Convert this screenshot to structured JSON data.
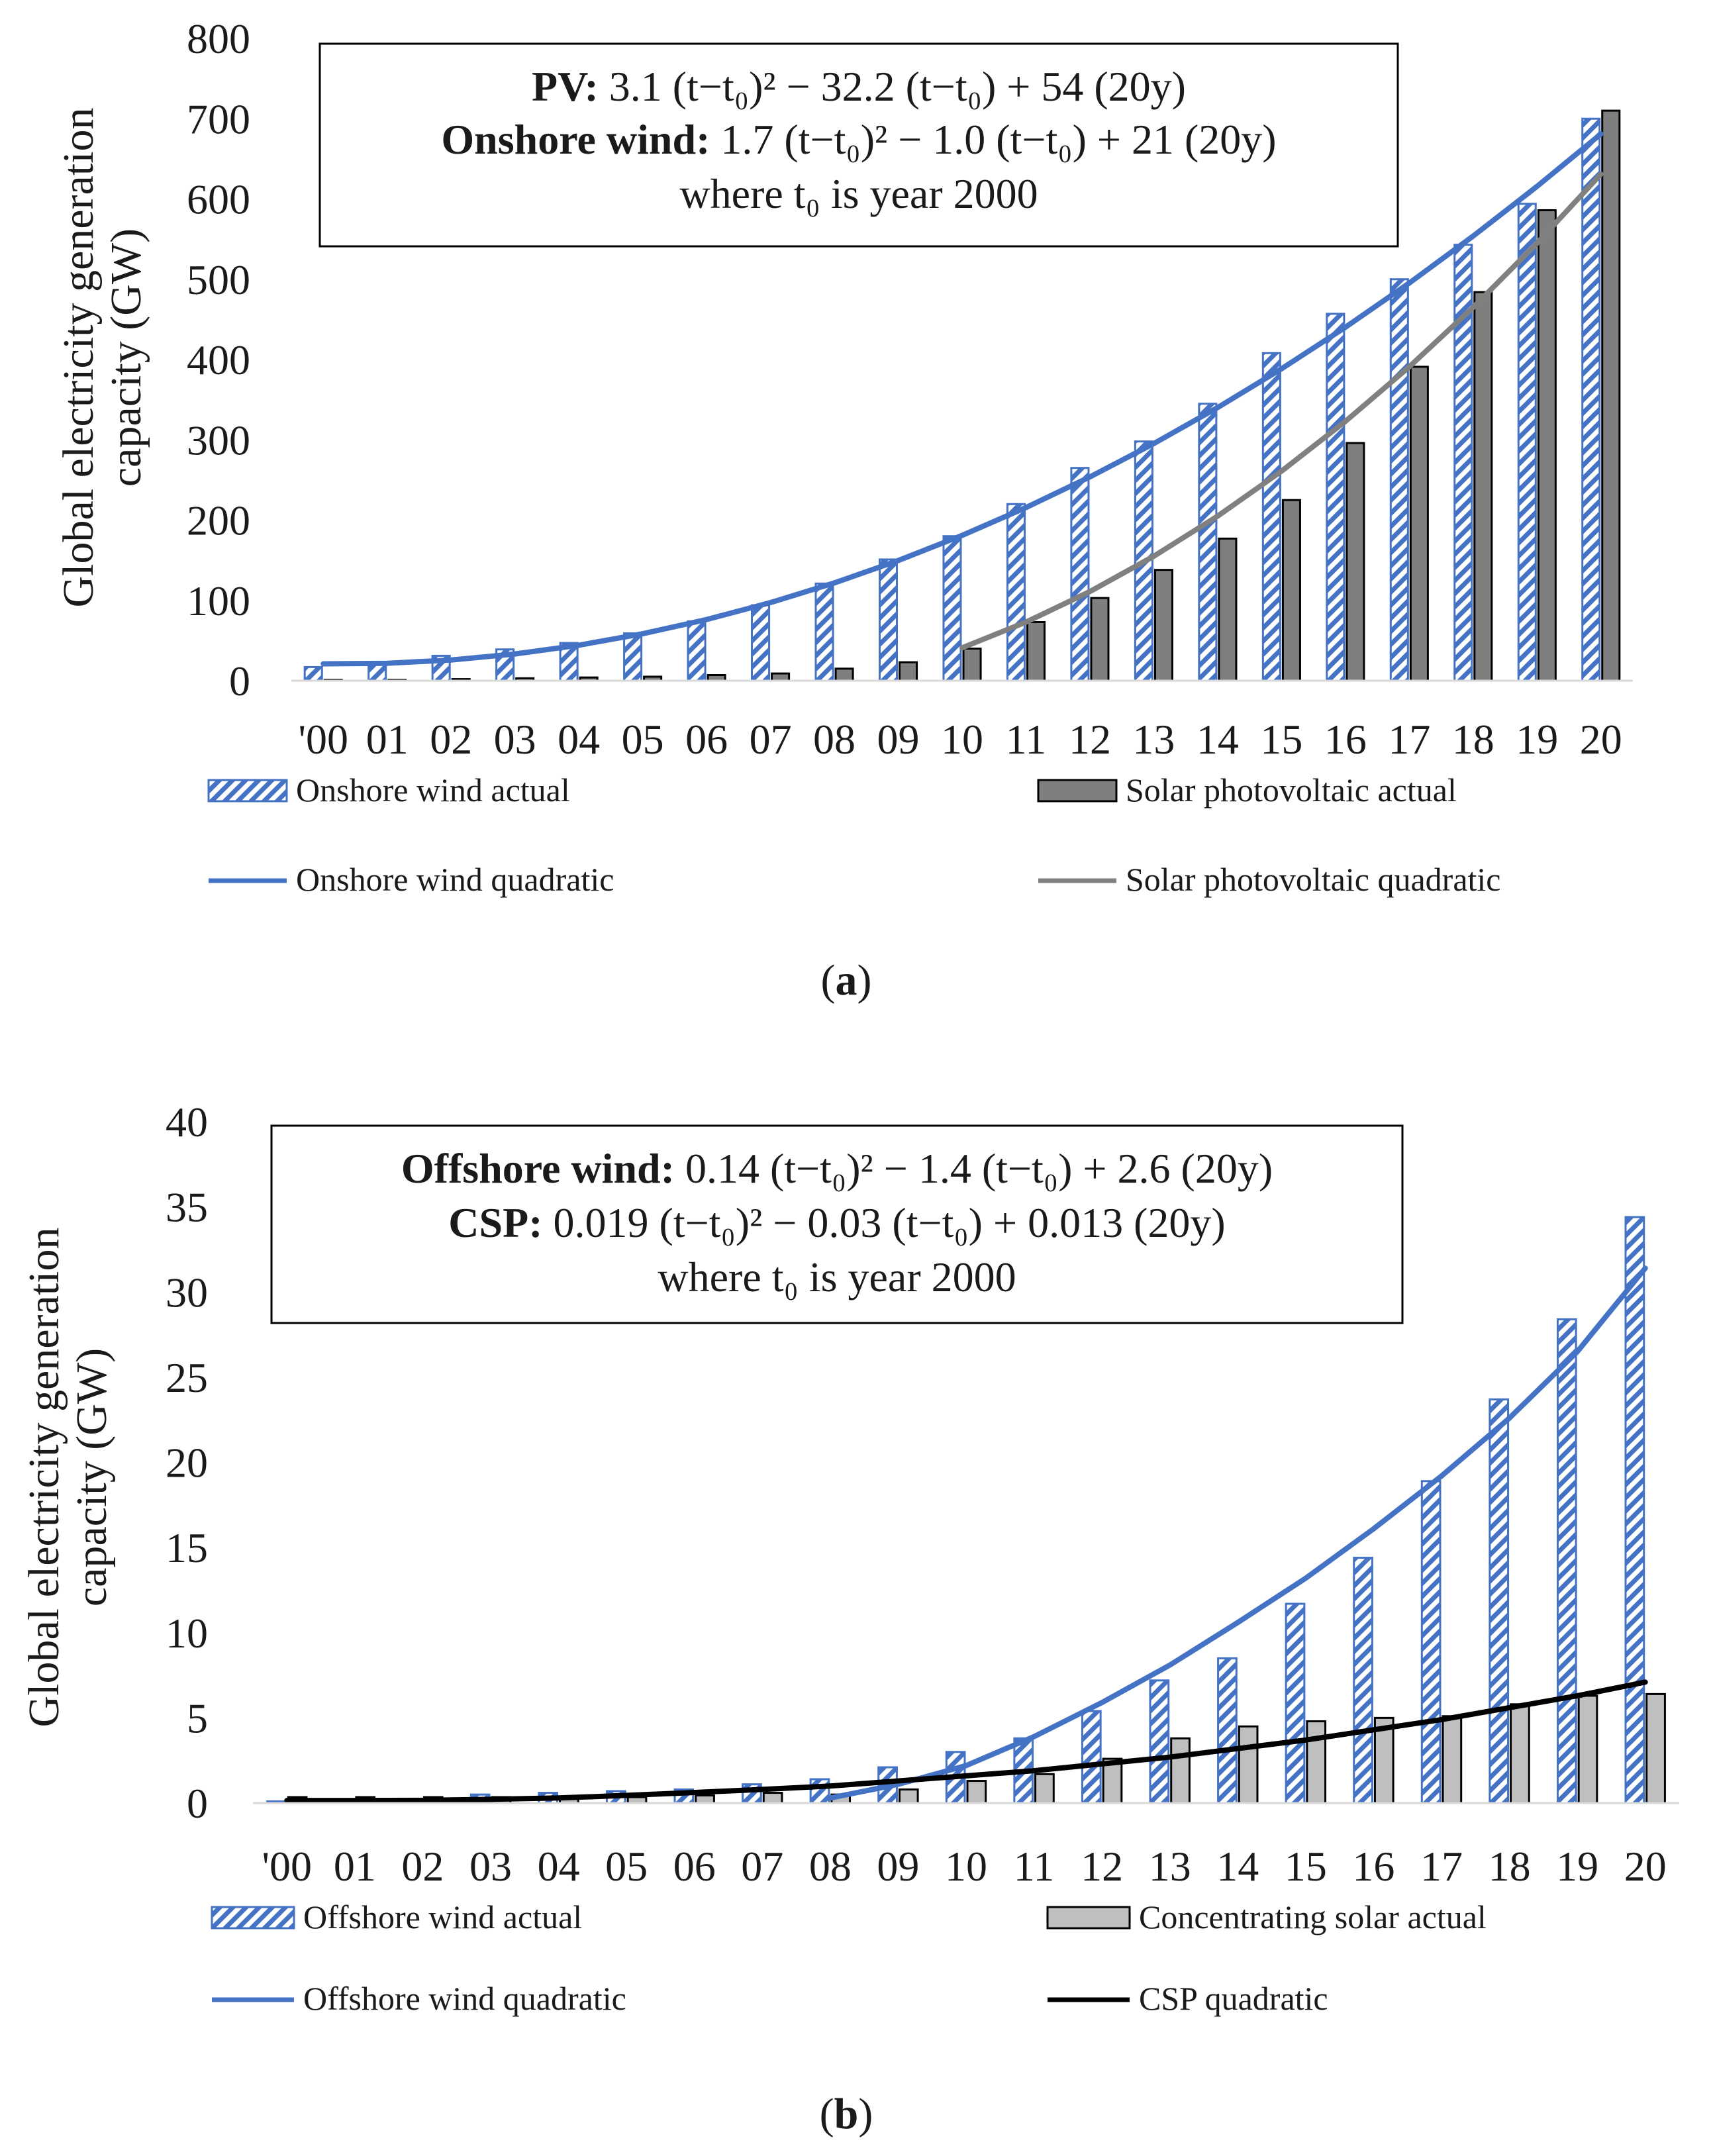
{
  "colors": {
    "wind": "#4472c4",
    "pv_bar": "#7f7f7f",
    "pv_line": "#808080",
    "csp_bar": "#bfbfbf",
    "csp_line": "#000000",
    "grid": "#d9d9d9"
  },
  "chart_data": [
    {
      "type": "bar",
      "id": "a",
      "caption": "(a)",
      "ylabel_lines": [
        "Global electricity  generation",
        "capacity (GW)"
      ],
      "ylim": [
        0,
        800
      ],
      "yticks": [
        0,
        100,
        200,
        300,
        400,
        500,
        600,
        700,
        800
      ],
      "categories": [
        "'00",
        "01",
        "02",
        "03",
        "04",
        "05",
        "06",
        "07",
        "08",
        "09",
        "10",
        "11",
        "12",
        "13",
        "14",
        "15",
        "16",
        "17",
        "18",
        "19",
        "20"
      ],
      "equation_box": {
        "line1": {
          "bold": "PV:",
          "text": "3.1 (t−t₀)² − 32.2 (t−t₀) + 54 (20y)"
        },
        "line2": {
          "bold": "Onshore wind:",
          "text": "1.7 (t−t₀)² − 1.0 (t−t₀) + 21 (20y)"
        },
        "line3": {
          "text": "where t₀ is year 2000"
        }
      },
      "series": [
        {
          "name": "Onshore wind actual",
          "kind": "bar",
          "pattern": "hatch",
          "values": [
            17,
            23,
            31,
            39,
            47,
            59,
            74,
            94,
            121,
            151,
            180,
            220,
            265,
            298,
            345,
            408,
            457,
            500,
            543,
            594,
            700
          ]
        },
        {
          "name": "Solar photovoltaic actual",
          "kind": "bar",
          "pattern": "solid",
          "values": [
            1,
            1,
            2,
            3,
            4,
            5,
            7,
            9,
            15,
            23,
            40,
            73,
            103,
            138,
            177,
            225,
            296,
            391,
            484,
            586,
            710
          ]
        },
        {
          "name": "Onshore wind quadratic",
          "kind": "line",
          "values": [
            21,
            21.7,
            25.8,
            33.3,
            44.2,
            58.5,
            76.2,
            97.3,
            121.8,
            149.7,
            181,
            215.7,
            253.8,
            295.3,
            340.2,
            388.5,
            440.2,
            495.3,
            553.8,
            615.7,
            681
          ]
        },
        {
          "name": "Solar photovoltaic quadratic",
          "kind": "line",
          "from_index": 10,
          "values": [
            null,
            null,
            null,
            null,
            null,
            null,
            null,
            null,
            null,
            null,
            41,
            73,
            111,
            155,
            205,
            261,
            323,
            391,
            465,
            545,
            631
          ]
        }
      ],
      "legend": [
        "Onshore wind actual",
        "Solar photovoltaic actual",
        "Onshore wind quadratic",
        "Solar photovoltaic quadratic"
      ]
    },
    {
      "type": "bar",
      "id": "b",
      "caption": "(b)",
      "ylabel_lines": [
        "Global electricity  generation",
        "capacity (GW)"
      ],
      "ylim": [
        0,
        40
      ],
      "yticks": [
        0,
        5,
        10,
        15,
        20,
        25,
        30,
        35,
        40
      ],
      "categories": [
        "'00",
        "01",
        "02",
        "03",
        "04",
        "05",
        "06",
        "07",
        "08",
        "09",
        "10",
        "11",
        "12",
        "13",
        "14",
        "15",
        "16",
        "17",
        "18",
        "19",
        "20"
      ],
      "equation_box": {
        "line1": {
          "bold": "Offshore wind:",
          "text": "0.14 (t−t₀)² − 1.4 (t−t₀) + 2.6 (20y)"
        },
        "line2": {
          "bold": "CSP:",
          "text": "0.019 (t−t₀)² − 0.03 (t−t₀) + 0.013 (20y)"
        },
        "line3": {
          "text": "where t₀ is year 2000"
        }
      },
      "series": [
        {
          "name": "Offshore wind actual",
          "kind": "bar",
          "pattern": "hatch",
          "values": [
            0.1,
            0.1,
            0.2,
            0.5,
            0.6,
            0.7,
            0.8,
            1.1,
            1.4,
            2.1,
            3.0,
            3.8,
            5.4,
            7.2,
            8.5,
            11.7,
            14.4,
            18.9,
            23.7,
            28.4,
            34.4
          ]
        },
        {
          "name": "Concentrating solar actual",
          "kind": "bar",
          "pattern": "solid",
          "values": [
            0.35,
            0.35,
            0.35,
            0.35,
            0.35,
            0.35,
            0.45,
            0.6,
            0.5,
            0.8,
            1.3,
            1.7,
            2.6,
            3.8,
            4.5,
            4.8,
            5.0,
            5.1,
            5.8,
            6.3,
            6.4
          ]
        },
        {
          "name": "Offshore wind quadratic",
          "kind": "line",
          "from_index": 8,
          "values": [
            null,
            null,
            null,
            null,
            null,
            null,
            null,
            null,
            0.3,
            1.1,
            2.2,
            3.9,
            5.9,
            8.1,
            10.6,
            13.2,
            16.1,
            19.2,
            22.6,
            26.5,
            31.4
          ]
        },
        {
          "name": "CSP quadratic",
          "kind": "line",
          "values": [
            0.15,
            0.15,
            0.16,
            0.22,
            0.3,
            0.45,
            0.62,
            0.8,
            1.0,
            1.3,
            1.6,
            1.9,
            2.3,
            2.7,
            3.2,
            3.7,
            4.3,
            4.9,
            5.6,
            6.3,
            7.1
          ]
        }
      ],
      "legend": [
        "Offshore wind actual",
        "Concentrating solar actual",
        "Offshore wind quadratic",
        "CSP quadratic"
      ]
    }
  ]
}
